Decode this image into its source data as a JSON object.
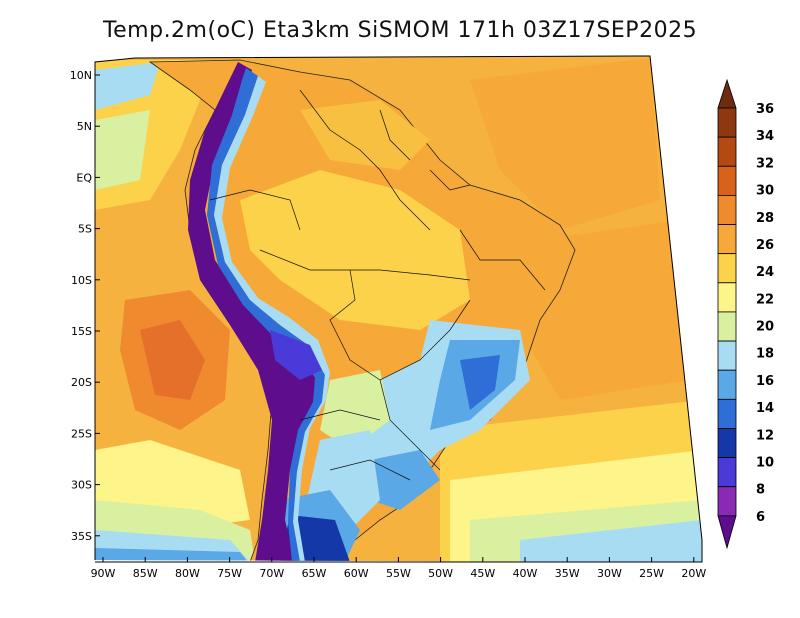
{
  "title": "Temp.2m(oC) Eta3km SiSMOM 171h 03Z17SEP2025",
  "map": {
    "lat_labels": [
      "10N",
      "5N",
      "EQ",
      "5S",
      "10S",
      "15S",
      "20S",
      "25S",
      "30S",
      "35S"
    ],
    "lon_labels": [
      "90W",
      "85W",
      "80W",
      "75W",
      "70W",
      "65W",
      "60W",
      "55W",
      "50W",
      "45W",
      "40W",
      "35W",
      "30W",
      "25W",
      "20W"
    ]
  },
  "legend": {
    "labels": [
      "36",
      "34",
      "32",
      "30",
      "28",
      "26",
      "24",
      "22",
      "20",
      "18",
      "16",
      "14",
      "12",
      "10",
      "8",
      "6"
    ],
    "colors": [
      "#6e2b0e",
      "#8e3810",
      "#b44a12",
      "#d8621a",
      "#f08a2e",
      "#f6a838",
      "#fbd24a",
      "#fdf48a",
      "#d9f0a0",
      "#a8dcf2",
      "#5aa8e6",
      "#2e6ed6",
      "#1438a8",
      "#4a3ad8",
      "#8a2ab4",
      "#5e0e8c"
    ]
  }
}
